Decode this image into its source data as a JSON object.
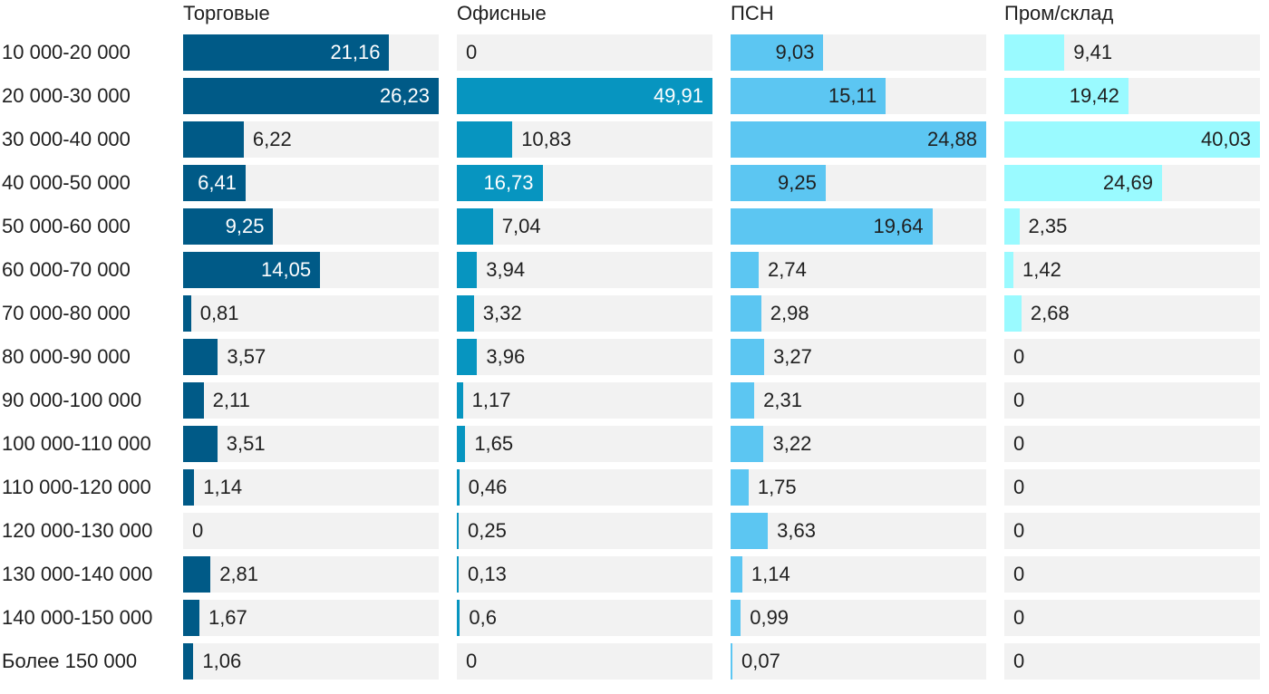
{
  "chart_data": {
    "type": "bar",
    "orientation": "horizontal",
    "categories": [
      "10 000-20 000",
      "20 000-30 000",
      "30 000-40 000",
      "40 000-50 000",
      "50 000-60 000",
      "60 000-70 000",
      "70 000-80 000",
      "80 000-90 000",
      "90 000-100 000",
      "100 000-110 000",
      "110 000-120 000",
      "120 000-130 000",
      "130 000-140 000",
      "140 000-150 000",
      "Более 150 000"
    ],
    "series": [
      {
        "name": "Торговые",
        "color": "#005a87",
        "label_on_bar_color": "#ffffff",
        "values": [
          21.16,
          26.23,
          6.22,
          6.41,
          9.25,
          14.05,
          0.81,
          3.57,
          2.11,
          3.51,
          1.14,
          0,
          2.81,
          1.67,
          1.06
        ],
        "labels": [
          "21,16",
          "26,23",
          "6,22",
          "6,41",
          "9,25",
          "14,05",
          "0,81",
          "3,57",
          "2,11",
          "3,51",
          "1,14",
          "0",
          "2,81",
          "1,67",
          "1,06"
        ],
        "xlim": [
          0,
          26.23
        ]
      },
      {
        "name": "Офисные",
        "color": "#0795c0",
        "label_on_bar_color": "#ffffff",
        "values": [
          0,
          49.91,
          10.83,
          16.73,
          7.04,
          3.94,
          3.32,
          3.96,
          1.17,
          1.65,
          0.46,
          0.25,
          0.13,
          0.6,
          0
        ],
        "labels": [
          "0",
          "49,91",
          "10,83",
          "16,73",
          "7,04",
          "3,94",
          "3,32",
          "3,96",
          "1,17",
          "1,65",
          "0,46",
          "0,25",
          "0,13",
          "0,6",
          "0"
        ],
        "xlim": [
          0,
          49.91
        ]
      },
      {
        "name": "ПСН",
        "color": "#5cc6f2",
        "label_on_bar_color": "#1f1f1f",
        "values": [
          9.03,
          15.11,
          24.88,
          9.25,
          19.64,
          2.74,
          2.98,
          3.27,
          2.31,
          3.22,
          1.75,
          3.63,
          1.14,
          0.99,
          0.07
        ],
        "labels": [
          "9,03",
          "15,11",
          "24,88",
          "9,25",
          "19,64",
          "2,74",
          "2,98",
          "3,27",
          "2,31",
          "3,22",
          "1,75",
          "3,63",
          "1,14",
          "0,99",
          "0,07"
        ],
        "xlim": [
          0,
          24.88
        ]
      },
      {
        "name": "Пром/склад",
        "color": "#9afaff",
        "label_on_bar_color": "#1f1f1f",
        "values": [
          9.41,
          19.42,
          40.03,
          24.69,
          2.35,
          1.42,
          2.68,
          0,
          0,
          0,
          0,
          0,
          0,
          0,
          0
        ],
        "labels": [
          "9,41",
          "19,42",
          "40,03",
          "24,69",
          "2,35",
          "1,42",
          "2,68",
          "0",
          "0",
          "0",
          "0",
          "0",
          "0",
          "0",
          "0"
        ],
        "xlim": [
          0,
          40.03
        ]
      }
    ],
    "title": "",
    "xlabel": "",
    "ylabel": "",
    "grid": false,
    "legend": "none",
    "track_color": "#f2f2f2",
    "text_color": "#1f1f1f"
  }
}
